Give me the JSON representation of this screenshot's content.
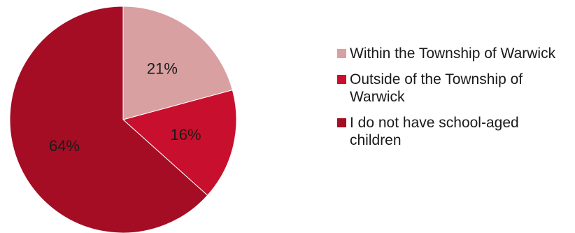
{
  "chart_data": {
    "type": "pie",
    "title": "",
    "legend_position": "right",
    "slices": [
      {
        "label": "Within the Township of Warwick",
        "value": 21,
        "display": "21%",
        "color": "#d9a0a2"
      },
      {
        "label": "Outside of the Township of Warwick",
        "value": 16,
        "display": "16%",
        "color": "#c8102e"
      },
      {
        "label": "I do not have school-aged children",
        "value": 64,
        "display": "64%",
        "color": "#a50d24"
      }
    ]
  }
}
